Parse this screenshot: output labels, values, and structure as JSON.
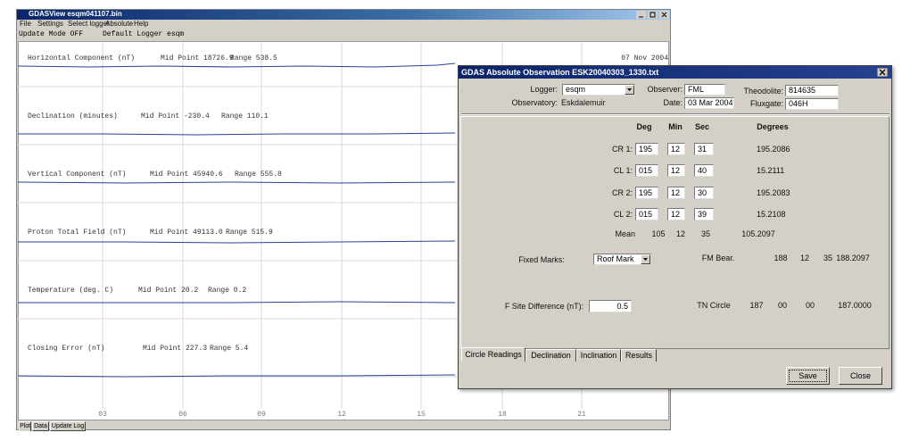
{
  "window": {
    "title": "GDASView esqm041107.bin",
    "menu": [
      "File",
      "Settings",
      "Select logger",
      "Absolute",
      "Help"
    ],
    "status": [
      "Update Mode OFF",
      "Default Logger esqm"
    ],
    "date": "07 Nov 2004",
    "panels": [
      {
        "label": "Horizontal Component (nT)",
        "mid": "Mid Point 18726.9",
        "range": "Range 538.5"
      },
      {
        "label": "Declination (minutes)",
        "mid": "Mid Point -230.4",
        "range": "Range 110.1"
      },
      {
        "label": "Vertical Component (nT)",
        "mid": "Mid Point 45940.6",
        "range": "Range 555.8"
      },
      {
        "label": "Proton Total Field (nT)",
        "mid": "Mid Point 49113.0",
        "range": "Range 515.9"
      },
      {
        "label": "Temperature (deg. C)",
        "mid": "Mid Point 20.2",
        "range": "Range 0.2"
      },
      {
        "label": "Closing Error (nT)",
        "mid": "Mid Point 227.3",
        "range": "Range 5.4"
      }
    ],
    "x_labels": [
      "03",
      "06",
      "09",
      "12",
      "15",
      "18",
      "21"
    ],
    "tabs": [
      "Plot",
      "Data",
      "Update Log"
    ]
  },
  "dialog": {
    "title": "GDAS Absolute Observation ESK20040303_1330.txt",
    "header": [
      {
        "label": "Logger:",
        "value": "esqm"
      },
      {
        "label": "Observatory:",
        "value": "Eskdalemuir"
      },
      {
        "label": "Observer:",
        "value": "FML"
      },
      {
        "label": "Date:",
        "value": "03 Mar 2004"
      },
      {
        "label": "Theodolite:",
        "value": "814635"
      },
      {
        "label": "Fluxgate:",
        "value": "046H"
      }
    ],
    "columns": [
      "Deg",
      "Min",
      "Sec",
      "Degrees"
    ],
    "readings": [
      {
        "label": "CR 1:",
        "deg": "195",
        "min": "12",
        "sec": "31",
        "degrees": "195.2086"
      },
      {
        "label": "CL 1:",
        "deg": "015",
        "min": "12",
        "sec": "40",
        "degrees": "15.2111"
      },
      {
        "label": "CR 2:",
        "deg": "195",
        "min": "12",
        "sec": "30",
        "degrees": "195.2083"
      },
      {
        "label": "CL 2:",
        "deg": "015",
        "min": "12",
        "sec": "39",
        "degrees": "15.2108"
      }
    ],
    "mean": {
      "label": "Mean",
      "deg": "105",
      "min": "12",
      "sec": "35",
      "degrees": "105.2097"
    },
    "fixed_marks": {
      "label": "Fixed Marks:",
      "value": "Roof Mark",
      "bearing_label": "FM Bear.",
      "deg": "188",
      "min": "12",
      "sec": "35",
      "degrees": "188.2097"
    },
    "f_site": {
      "label": "F Site Difference (nT):",
      "value": "0.5"
    },
    "tn_circle": {
      "label": "TN Circle",
      "deg": "187",
      "min": "00",
      "sec": "00",
      "degrees": "187.0000"
    },
    "tabs": [
      "Circle Readings",
      "Declination",
      "Inclination",
      "Results"
    ],
    "buttons": [
      "Save",
      "Close"
    ]
  }
}
